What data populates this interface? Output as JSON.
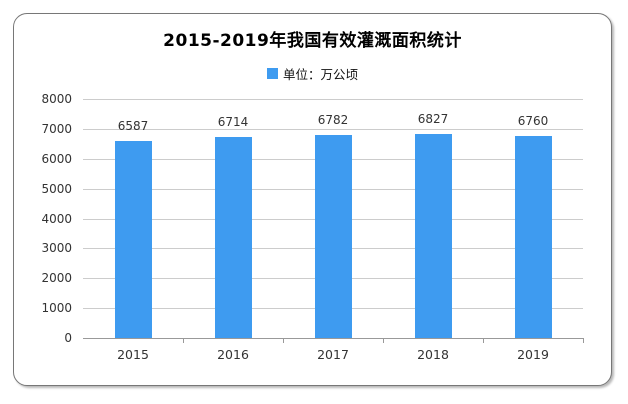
{
  "chart_data": {
    "type": "bar",
    "title": "2015-2019年我国有效灌溉面积统计",
    "legend": {
      "label": "单位：万公顷",
      "position": "top-center"
    },
    "categories": [
      "2015",
      "2016",
      "2017",
      "2018",
      "2019"
    ],
    "values": [
      6587,
      6714,
      6782,
      6827,
      6760
    ],
    "xlabel": "",
    "ylabel": "",
    "ylim": [
      0,
      8000
    ],
    "ytick_step": 1000,
    "yticks": [
      0,
      1000,
      2000,
      3000,
      4000,
      5000,
      6000,
      7000,
      8000
    ],
    "grid": true,
    "data_labels": true,
    "colors": {
      "bar": "#3E9BF0",
      "gridline": "#cccccc",
      "axis_line": "#999999",
      "tick_text": "#333333",
      "title_text": "#000000",
      "card_border": "#777777"
    }
  }
}
